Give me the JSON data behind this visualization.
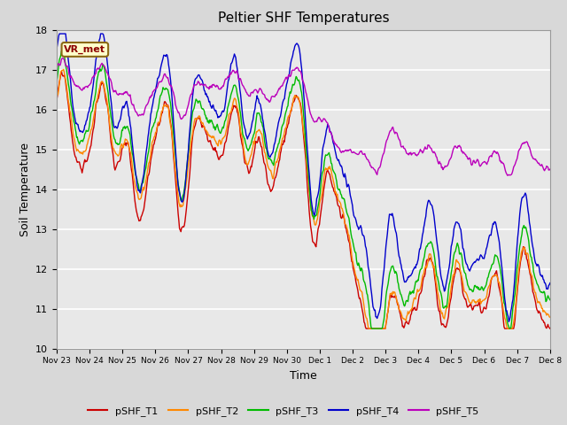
{
  "title": "Peltier SHF Temperatures",
  "xlabel": "Time",
  "ylabel": "Soil Temperature",
  "ylim": [
    10.0,
    18.0
  ],
  "yticks": [
    10.0,
    11.0,
    12.0,
    13.0,
    14.0,
    15.0,
    16.0,
    17.0,
    18.0
  ],
  "plot_bg_color": "#e8e8e8",
  "fig_bg_color": "#d8d8d8",
  "series_colors": {
    "pSHF_T1": "#cc0000",
    "pSHF_T2": "#ff8800",
    "pSHF_T3": "#00bb00",
    "pSHF_T4": "#0000cc",
    "pSHF_T5": "#bb00bb"
  },
  "legend_label": "VR_met",
  "xtick_labels": [
    "Nov 23",
    "Nov 24",
    "Nov 25",
    "Nov 26",
    "Nov 27",
    "Nov 28",
    "Nov 29",
    "Nov 30",
    "Dec 1",
    "Dec 2",
    "Dec 3",
    "Dec 4",
    "Dec 5",
    "Dec 6",
    "Dec 7",
    "Dec 8"
  ],
  "n_points": 720,
  "total_days": 15
}
